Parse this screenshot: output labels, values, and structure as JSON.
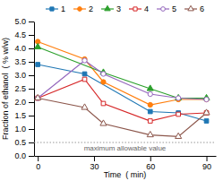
{
  "chart_data": {
    "type": "line",
    "x_label": "Time  ( min)",
    "y_label": "Fraction of ethanol  ( % w/w)",
    "xlim": [
      -2,
      95
    ],
    "ylim": [
      0.0,
      5.0
    ],
    "xticks": [
      0,
      30,
      60,
      90
    ],
    "yticks": [
      {
        "value": 0.0,
        "label": "0.0"
      },
      0.5,
      {
        "value": 1.0,
        "label": "1.0"
      },
      1.5,
      {
        "value": 2.0,
        "label": "2.0"
      },
      2.5,
      {
        "value": 3.0,
        "label": "3.0"
      },
      3.5,
      {
        "value": 4.0,
        "label": "4.0"
      },
      4.5,
      {
        "value": 5.0,
        "label": "5.0"
      }
    ],
    "grid": false,
    "legend": "top",
    "annotations": [
      {
        "text": "maximum allowable value",
        "y": 0.5,
        "line_style": "dotted"
      }
    ],
    "series": [
      {
        "name": "1",
        "marker": "square",
        "x": [
          0,
          25,
          60,
          75,
          90
        ],
        "values": [
          3.4,
          3.05,
          1.65,
          1.6,
          1.3
        ]
      },
      {
        "name": "2",
        "marker": "circle",
        "x": [
          0,
          25,
          35,
          60,
          75,
          90
        ],
        "values": [
          4.25,
          3.6,
          2.75,
          1.9,
          2.1,
          2.1
        ]
      },
      {
        "name": "3",
        "marker": "triangle",
        "x": [
          0,
          35,
          60,
          75,
          90
        ],
        "values": [
          4.05,
          3.1,
          2.5,
          2.15,
          2.15
        ]
      },
      {
        "name": "4",
        "marker": "open-square",
        "x": [
          0,
          25,
          35,
          60,
          75,
          90
        ],
        "values": [
          2.15,
          2.85,
          1.95,
          1.3,
          1.55,
          1.6
        ]
      },
      {
        "name": "5",
        "marker": "open-circle",
        "x": [
          0,
          25,
          35,
          60,
          75,
          90
        ],
        "values": [
          2.15,
          3.55,
          3.05,
          2.3,
          2.15,
          2.1
        ]
      },
      {
        "name": "6",
        "marker": "open-triangle",
        "x": [
          0,
          25,
          35,
          60,
          75,
          90
        ],
        "values": [
          2.15,
          1.8,
          1.2,
          0.78,
          0.72,
          1.6
        ]
      }
    ]
  }
}
